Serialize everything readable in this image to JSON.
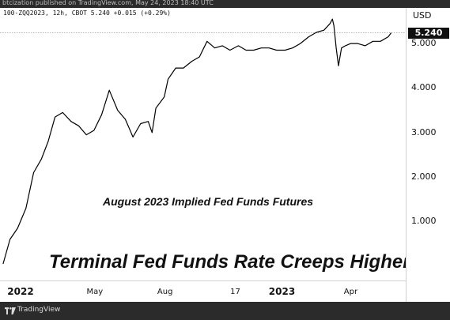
{
  "header": {
    "published": "btcization published on TradingView.com, May 24, 2023 18:40 UTC"
  },
  "footer": {
    "brand": "TradingView"
  },
  "chart_data": {
    "type": "line",
    "symbol_info": "100-ZQQ2023, 12h, CBOT  5.240  +0.015 (+0.29%)",
    "currency": "USD",
    "y_ticks": [
      "1.000",
      "2.000",
      "3.000",
      "4.000",
      "5.000"
    ],
    "ylim": [
      -0.5,
      5.8
    ],
    "last_price": "5.240",
    "last_value": 5.24,
    "x_ticks": [
      "2022",
      "May",
      "Aug",
      "17",
      "2023",
      "Apr"
    ],
    "x_ticks_bold": [
      "2022",
      "2023"
    ],
    "annotations": [
      "August 2023 Implied Fed Funds Futures",
      "Terminal Fed Funds Rate Creeps Higher"
    ],
    "series": [
      {
        "x": [
          "2022-01-01",
          "2022-01-10",
          "2022-01-20",
          "2022-01-31",
          "2022-02-10",
          "2022-02-20",
          "2022-03-01",
          "2022-03-10",
          "2022-03-20",
          "2022-03-31",
          "2022-04-10",
          "2022-04-20",
          "2022-04-30",
          "2022-05-10",
          "2022-05-20",
          "2022-05-31",
          "2022-06-10",
          "2022-06-15",
          "2022-06-20",
          "2022-06-30",
          "2022-07-10",
          "2022-07-15",
          "2022-07-20",
          "2022-07-31",
          "2022-08-05",
          "2022-08-15",
          "2022-08-25",
          "2022-09-05",
          "2022-09-15",
          "2022-09-25",
          "2022-10-05",
          "2022-10-15",
          "2022-10-25",
          "2022-11-05",
          "2022-11-15",
          "2022-11-25",
          "2022-12-05",
          "2022-12-15",
          "2022-12-25",
          "2023-01-05",
          "2023-01-15",
          "2023-01-25",
          "2023-02-05",
          "2023-02-15",
          "2023-02-25",
          "2023-03-05",
          "2023-03-08",
          "2023-03-10",
          "2023-03-13",
          "2023-03-16",
          "2023-03-20",
          "2023-03-25",
          "2023-04-01",
          "2023-04-10",
          "2023-04-20",
          "2023-04-30",
          "2023-05-10",
          "2023-05-20",
          "2023-05-24"
        ],
        "values": [
          0.05,
          0.6,
          0.85,
          1.3,
          2.1,
          2.4,
          2.8,
          3.35,
          3.45,
          3.25,
          3.15,
          2.95,
          3.05,
          3.4,
          3.95,
          3.5,
          3.3,
          3.1,
          2.9,
          3.2,
          3.25,
          3.0,
          3.55,
          3.8,
          4.2,
          4.45,
          4.45,
          4.6,
          4.7,
          5.05,
          4.9,
          4.95,
          4.85,
          4.95,
          4.85,
          4.85,
          4.9,
          4.9,
          4.85,
          4.85,
          4.9,
          5.0,
          5.15,
          5.25,
          5.3,
          5.45,
          5.55,
          5.4,
          4.9,
          4.5,
          4.9,
          4.95,
          5.0,
          5.0,
          4.95,
          5.05,
          5.05,
          5.15,
          5.24
        ]
      }
    ]
  }
}
